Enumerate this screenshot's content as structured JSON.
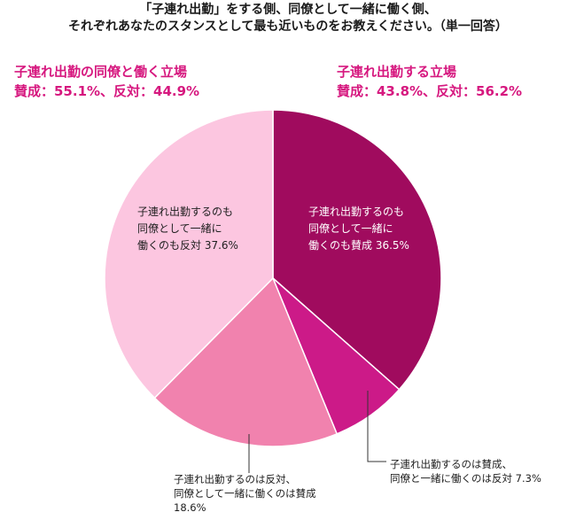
{
  "title_line1": "「子連れ出勤」をする側、同僚として一緒に働く側、",
  "title_line2": "それぞれあなたのスタンスとして最も近いものをお教えください。（単一回答）",
  "summary_left": {
    "heading": "子連れ出勤の同僚と働く立場",
    "values": "賛成：55.1%、反対：44.9%"
  },
  "summary_right": {
    "heading": "子連れ出勤する立場",
    "values": "賛成：43.8%、反対：56.2%"
  },
  "colors": {
    "accent": "#d6187f",
    "slice_1": "#a00b5e",
    "slice_2": "#cc1a88",
    "slice_3": "#f182ae",
    "slice_4": "#fcc6e0"
  },
  "chart_data": {
    "type": "pie",
    "title": "「子連れ出勤」をする側、同僚として一緒に働く側、それぞれあなたのスタンスとして最も近いものをお教えください。（単一回答）",
    "unit": "%",
    "slices": [
      {
        "label_lines": [
          "子連れ出勤するのも",
          "同僚として一緒に",
          "働くのも賛成 36.5%"
        ],
        "value": 36.5,
        "color": "#a00b5e"
      },
      {
        "label_lines": [
          "子連れ出勤するのは賛成、",
          "同僚と一緒に働くのは反対 7.3%"
        ],
        "value": 7.3,
        "color": "#cc1a88"
      },
      {
        "label_lines": [
          "子連れ出勤するのは反対、",
          "同僚として一緒に働くのは賛成",
          "18.6%"
        ],
        "value": 18.6,
        "color": "#f182ae"
      },
      {
        "label_lines": [
          "子連れ出勤するのも",
          "同僚として一緒に",
          "働くのも反対 37.6%"
        ],
        "value": 37.6,
        "color": "#fcc6e0"
      }
    ]
  }
}
